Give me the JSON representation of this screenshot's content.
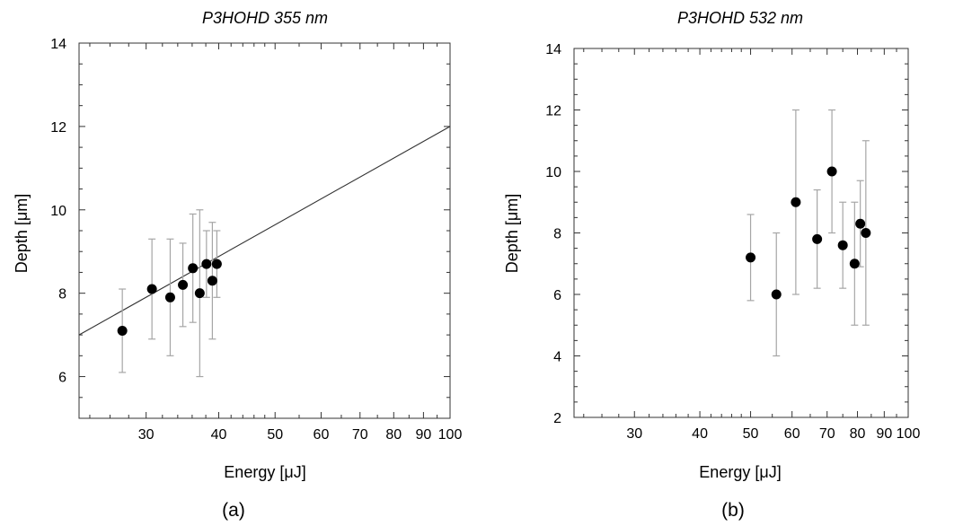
{
  "chart_data": [
    {
      "type": "scatter",
      "panel_label": "(a)",
      "title": "P3HOHD 355 nm",
      "xlabel": "Energy [μJ]",
      "ylabel": "Depth [μm]",
      "x_scale": "log",
      "xlim": [
        23,
        100
      ],
      "ylim": [
        5,
        14
      ],
      "x_ticks": [
        30,
        40,
        50,
        60,
        70,
        80,
        90,
        100
      ],
      "y_ticks": [
        6,
        8,
        10,
        12,
        14
      ],
      "grid": false,
      "series": [
        {
          "points": [
            {
              "x": 27.3,
              "y": 7.1,
              "err_low": 6.1,
              "err_high": 8.1
            },
            {
              "x": 30.7,
              "y": 8.1,
              "err_low": 6.9,
              "err_high": 9.3
            },
            {
              "x": 33.0,
              "y": 7.9,
              "err_low": 6.5,
              "err_high": 9.3
            },
            {
              "x": 34.7,
              "y": 8.2,
              "err_low": 7.2,
              "err_high": 9.2
            },
            {
              "x": 36.1,
              "y": 8.6,
              "err_low": 7.3,
              "err_high": 9.9
            },
            {
              "x": 37.1,
              "y": 8.0,
              "err_low": 6.0,
              "err_high": 10.0
            },
            {
              "x": 38.1,
              "y": 8.7,
              "err_low": 7.9,
              "err_high": 9.5
            },
            {
              "x": 39.0,
              "y": 8.3,
              "err_low": 6.9,
              "err_high": 9.7
            },
            {
              "x": 39.7,
              "y": 8.7,
              "err_low": 7.9,
              "err_high": 9.5
            }
          ]
        }
      ],
      "fit_line": {
        "x": [
          23,
          100
        ],
        "y": [
          7.0,
          12.0
        ]
      }
    },
    {
      "type": "scatter",
      "panel_label": "(b)",
      "title": "P3HOHD 532 nm",
      "xlabel": "Energy [μJ]",
      "ylabel": "Depth [μm]",
      "x_scale": "log",
      "xlim": [
        23,
        100
      ],
      "ylim": [
        2,
        14
      ],
      "x_ticks": [
        30,
        40,
        50,
        60,
        70,
        80,
        90,
        100
      ],
      "y_ticks": [
        2,
        4,
        6,
        8,
        10,
        12,
        14
      ],
      "grid": false,
      "series": [
        {
          "points": [
            {
              "x": 50.0,
              "y": 7.2,
              "err_low": 5.8,
              "err_high": 8.6
            },
            {
              "x": 56.0,
              "y": 6.0,
              "err_low": 4.0,
              "err_high": 8.0
            },
            {
              "x": 61.0,
              "y": 9.0,
              "err_low": 6.0,
              "err_high": 12.0
            },
            {
              "x": 67.0,
              "y": 7.8,
              "err_low": 6.2,
              "err_high": 9.4
            },
            {
              "x": 71.5,
              "y": 10.0,
              "err_low": 8.0,
              "err_high": 12.0
            },
            {
              "x": 75.0,
              "y": 7.6,
              "err_low": 6.2,
              "err_high": 9.0
            },
            {
              "x": 79.0,
              "y": 7.0,
              "err_low": 5.0,
              "err_high": 9.0
            },
            {
              "x": 81.0,
              "y": 8.3,
              "err_low": 6.9,
              "err_high": 9.7
            },
            {
              "x": 83.0,
              "y": 8.0,
              "err_low": 5.0,
              "err_high": 11.0
            }
          ]
        }
      ]
    }
  ]
}
